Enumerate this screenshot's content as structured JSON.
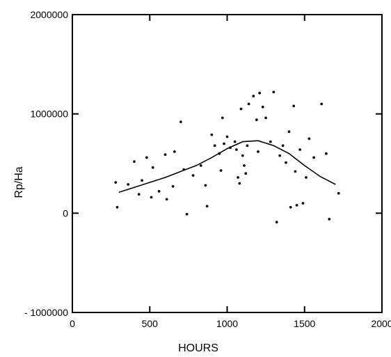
{
  "chart_data": {
    "type": "scatter",
    "title": "",
    "xlabel": "HOURS",
    "ylabel": "Rp/Ha",
    "xlim": [
      0,
      2000
    ],
    "ylim": [
      -1000000,
      2000000
    ],
    "x_ticks": [
      0,
      500,
      1000,
      1500,
      2000
    ],
    "y_ticks": [
      -1000000,
      0,
      1000000,
      2000000
    ],
    "x_tick_labels": [
      "0",
      "500",
      "1000",
      "1500",
      "2000"
    ],
    "y_tick_labels": [
      "- 1000000",
      "0",
      "1000000",
      "2000000"
    ],
    "grid": false,
    "legend": "none",
    "series": [
      {
        "kind": "points",
        "points": [
          [
            280,
            310000
          ],
          [
            290,
            60000
          ],
          [
            360,
            290000
          ],
          [
            400,
            520000
          ],
          [
            430,
            190000
          ],
          [
            450,
            330000
          ],
          [
            480,
            560000
          ],
          [
            510,
            160000
          ],
          [
            520,
            460000
          ],
          [
            560,
            220000
          ],
          [
            600,
            590000
          ],
          [
            610,
            140000
          ],
          [
            650,
            270000
          ],
          [
            660,
            620000
          ],
          [
            700,
            920000
          ],
          [
            720,
            440000
          ],
          [
            740,
            -10000
          ],
          [
            780,
            380000
          ],
          [
            830,
            480000
          ],
          [
            860,
            280000
          ],
          [
            870,
            70000
          ],
          [
            900,
            790000
          ],
          [
            920,
            680000
          ],
          [
            950,
            600000
          ],
          [
            960,
            430000
          ],
          [
            970,
            960000
          ],
          [
            980,
            700000
          ],
          [
            1000,
            770000
          ],
          [
            1020,
            660000
          ],
          [
            1050,
            720000
          ],
          [
            1060,
            640000
          ],
          [
            1070,
            360000
          ],
          [
            1080,
            300000
          ],
          [
            1090,
            1050000
          ],
          [
            1100,
            580000
          ],
          [
            1110,
            480000
          ],
          [
            1120,
            400000
          ],
          [
            1130,
            680000
          ],
          [
            1140,
            1100000
          ],
          [
            1170,
            1180000
          ],
          [
            1190,
            940000
          ],
          [
            1200,
            620000
          ],
          [
            1210,
            1210000
          ],
          [
            1230,
            1070000
          ],
          [
            1250,
            960000
          ],
          [
            1280,
            720000
          ],
          [
            1300,
            1220000
          ],
          [
            1320,
            -90000
          ],
          [
            1340,
            580000
          ],
          [
            1360,
            680000
          ],
          [
            1380,
            510000
          ],
          [
            1400,
            820000
          ],
          [
            1410,
            60000
          ],
          [
            1430,
            1080000
          ],
          [
            1440,
            420000
          ],
          [
            1450,
            80000
          ],
          [
            1470,
            640000
          ],
          [
            1490,
            100000
          ],
          [
            1510,
            360000
          ],
          [
            1530,
            750000
          ],
          [
            1560,
            560000
          ],
          [
            1610,
            1100000
          ],
          [
            1640,
            600000
          ],
          [
            1660,
            -60000
          ],
          [
            1720,
            200000
          ]
        ]
      },
      {
        "kind": "trend-line",
        "points": [
          [
            300,
            210000
          ],
          [
            400,
            260000
          ],
          [
            500,
            310000
          ],
          [
            600,
            360000
          ],
          [
            700,
            420000
          ],
          [
            800,
            480000
          ],
          [
            900,
            560000
          ],
          [
            1000,
            650000
          ],
          [
            1100,
            720000
          ],
          [
            1200,
            730000
          ],
          [
            1300,
            680000
          ],
          [
            1400,
            600000
          ],
          [
            1500,
            480000
          ],
          [
            1600,
            370000
          ],
          [
            1700,
            290000
          ]
        ]
      }
    ]
  }
}
